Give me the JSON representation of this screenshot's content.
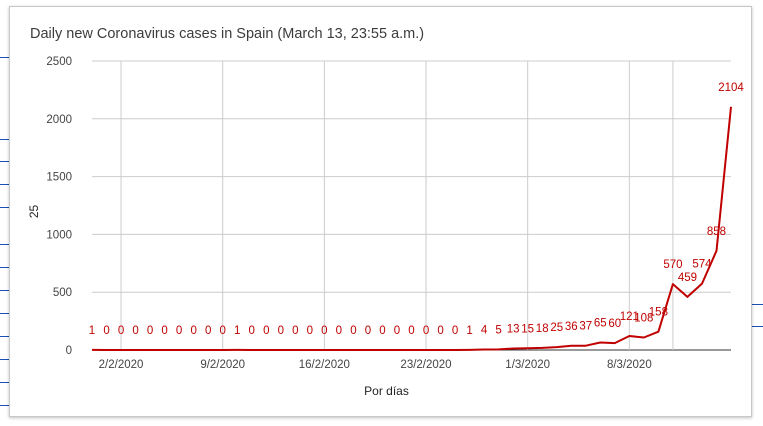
{
  "chart_data": {
    "type": "line",
    "title": "Daily new Coronavirus cases in Spain (March 13, 23:55 a.m.)",
    "xlabel": "Por días",
    "ylabel": "25",
    "ylim": [
      0,
      2500
    ],
    "yticks": [
      0,
      500,
      1000,
      1500,
      2000,
      2500
    ],
    "grid": true,
    "x_tick_labels": [
      {
        "label": "2/2/2020",
        "index": 2
      },
      {
        "label": "9/2/2020",
        "index": 9
      },
      {
        "label": "16/2/2020",
        "index": 16
      },
      {
        "label": "23/2/2020",
        "index": 23
      },
      {
        "label": "1/3/2020",
        "index": 30
      },
      {
        "label": "8/3/2020",
        "index": 37
      }
    ],
    "x_vgrid_index": 39.5,
    "series": [
      {
        "color": "#c00000",
        "values": [
          1,
          0,
          0,
          0,
          0,
          0,
          0,
          0,
          0,
          0,
          1,
          0,
          0,
          0,
          0,
          0,
          0,
          0,
          0,
          0,
          0,
          0,
          0,
          0,
          0,
          0,
          1,
          4,
          5,
          13,
          15,
          18,
          25,
          36,
          37,
          65,
          60,
          121,
          108,
          158,
          570,
          459,
          574,
          858,
          2104
        ],
        "labels": [
          "1",
          "0",
          "0",
          "0",
          "0",
          "0",
          "0",
          "0",
          "0",
          "0",
          "1",
          "0",
          "0",
          "0",
          "0",
          "0",
          "0",
          "0",
          "0",
          "0",
          "0",
          "0",
          "0",
          "0",
          "0",
          "0",
          "1",
          "4",
          "5",
          "13",
          "15",
          "18",
          "25",
          "36",
          "37",
          "65",
          "60",
          "121",
          "108",
          "158",
          "570",
          "459",
          "574",
          "858",
          "2104"
        ]
      }
    ]
  }
}
